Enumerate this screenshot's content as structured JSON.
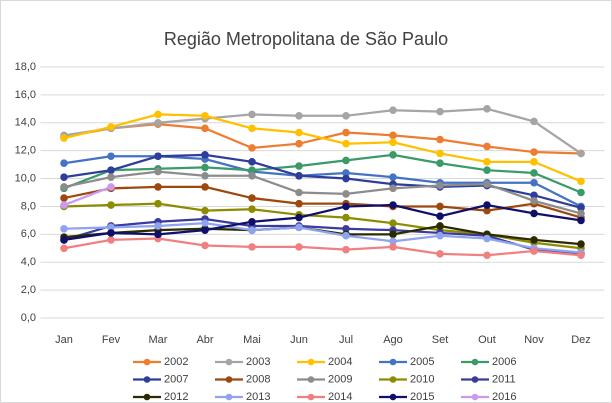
{
  "chart_data": {
    "type": "line",
    "title": "Região Metropolitana de São Paulo",
    "categories": [
      "Jan",
      "Fev",
      "Mar",
      "Abr",
      "Mai",
      "Jun",
      "Jul",
      "Ago",
      "Set",
      "Out",
      "Nov",
      "Dez"
    ],
    "ylim": [
      0,
      18
    ],
    "yticks": [
      {
        "value": 0,
        "label": "0,0"
      },
      {
        "value": 2,
        "label": "2,0"
      },
      {
        "value": 4,
        "label": "4,0"
      },
      {
        "value": 6,
        "label": "6,0"
      },
      {
        "value": 8,
        "label": "8,0"
      },
      {
        "value": 10,
        "label": "10,0"
      },
      {
        "value": 12,
        "label": "12,0"
      },
      {
        "value": 14,
        "label": "14,0"
      },
      {
        "value": 16,
        "label": "16,0"
      },
      {
        "value": 18,
        "label": "18,0"
      }
    ],
    "grid": true,
    "legend": "bottom",
    "series": [
      {
        "name": "2002",
        "color": "#ED7D31",
        "values": [
          13.0,
          13.6,
          13.9,
          13.6,
          12.2,
          12.5,
          13.3,
          13.1,
          12.8,
          12.3,
          11.9,
          11.8
        ]
      },
      {
        "name": "2003",
        "color": "#A5A5A5",
        "values": [
          13.1,
          13.6,
          14.0,
          14.3,
          14.6,
          14.5,
          14.5,
          14.9,
          14.8,
          15.0,
          14.1,
          11.8
        ]
      },
      {
        "name": "2004",
        "color": "#FFC000",
        "values": [
          12.9,
          13.7,
          14.6,
          14.5,
          13.6,
          13.3,
          12.5,
          12.6,
          11.8,
          11.2,
          11.2,
          9.8
        ]
      },
      {
        "name": "2005",
        "color": "#4472C4",
        "values": [
          11.1,
          11.6,
          11.6,
          11.4,
          10.5,
          10.2,
          10.4,
          10.1,
          9.7,
          9.7,
          9.7,
          8.0
        ]
      },
      {
        "name": "2006",
        "color": "#3A9A6A",
        "values": [
          9.3,
          10.6,
          10.7,
          10.8,
          10.6,
          10.9,
          11.3,
          11.7,
          11.1,
          10.6,
          10.4,
          9.0
        ]
      },
      {
        "name": "2007",
        "color": "#2F3D9A",
        "values": [
          10.1,
          10.6,
          11.6,
          11.7,
          11.2,
          10.2,
          10.0,
          9.6,
          9.4,
          9.5,
          8.8,
          7.9
        ]
      },
      {
        "name": "2008",
        "color": "#9E480E",
        "values": [
          8.6,
          9.3,
          9.4,
          9.4,
          8.6,
          8.2,
          8.2,
          8.0,
          8.0,
          7.7,
          8.2,
          7.2
        ]
      },
      {
        "name": "2009",
        "color": "#8C8C8C",
        "values": [
          9.4,
          10.1,
          10.5,
          10.2,
          10.2,
          9.0,
          8.9,
          9.3,
          9.5,
          9.6,
          8.4,
          7.5
        ]
      },
      {
        "name": "2010",
        "color": "#8C8C00",
        "values": [
          8.0,
          8.1,
          8.2,
          7.7,
          7.8,
          7.4,
          7.2,
          6.8,
          6.3,
          6.0,
          5.4,
          5.0
        ]
      },
      {
        "name": "2011",
        "color": "#3B3B9E",
        "values": [
          5.6,
          6.6,
          6.9,
          7.1,
          6.6,
          6.6,
          6.4,
          6.3,
          6.1,
          5.9,
          4.9,
          4.6
        ]
      },
      {
        "name": "2012",
        "color": "#2B2B00",
        "values": [
          5.8,
          6.1,
          6.3,
          6.4,
          6.3,
          6.5,
          6.0,
          6.0,
          6.6,
          6.0,
          5.6,
          5.3
        ]
      },
      {
        "name": "2013",
        "color": "#8FA3F0",
        "values": [
          6.4,
          6.5,
          6.6,
          6.8,
          6.3,
          6.5,
          5.9,
          5.5,
          5.9,
          5.7,
          5.0,
          4.7
        ]
      },
      {
        "name": "2014",
        "color": "#F08080",
        "values": [
          5.0,
          5.6,
          5.7,
          5.2,
          5.1,
          5.1,
          4.9,
          5.1,
          4.6,
          4.5,
          4.8,
          4.5
        ]
      },
      {
        "name": "2015",
        "color": "#10106B",
        "values": [
          5.6,
          6.1,
          6.0,
          6.3,
          6.9,
          7.2,
          8.0,
          8.1,
          7.3,
          8.1,
          7.5,
          7.0
        ]
      },
      {
        "name": "2016",
        "color": "#CC99EE",
        "values": [
          8.1,
          9.4,
          null,
          null,
          null,
          null,
          null,
          null,
          null,
          null,
          null,
          null
        ]
      }
    ]
  }
}
